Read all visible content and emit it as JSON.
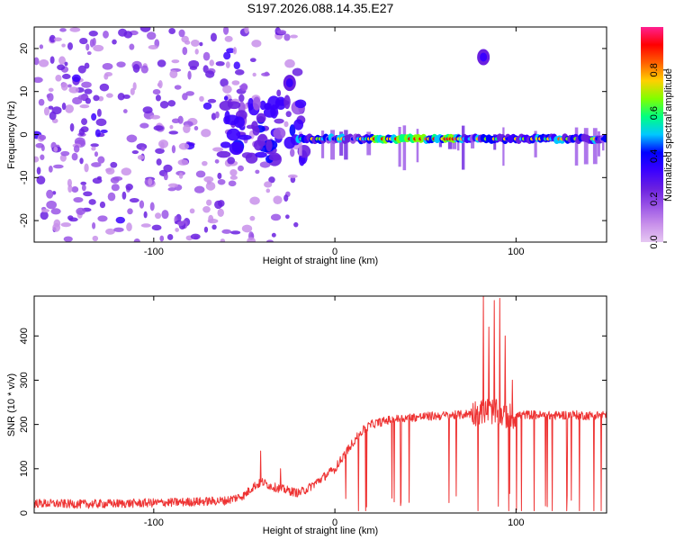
{
  "figure_title": "S197.2026.088.14.35.E27",
  "colors": {
    "line": "#ee3333",
    "axis": "#000000",
    "background": "#ffffff",
    "colormap": [
      "#e6c8f2",
      "#c890ea",
      "#9a55e6",
      "#6a20e0",
      "#3a00ff",
      "#0000ff",
      "#00c8ff",
      "#00ff80",
      "#80ff00",
      "#ffd000",
      "#ff6000",
      "#ff0000",
      "#ff2090"
    ]
  },
  "chart_data": [
    {
      "type": "heatmap",
      "title": "",
      "xlabel": "Height of straight line (km)",
      "ylabel": "Frequency (Hz)",
      "xlim": [
        -166,
        150
      ],
      "ylim": [
        -25,
        25
      ],
      "xticks": [
        "-100",
        "0",
        "100"
      ],
      "xtick_values": [
        -100,
        0,
        100
      ],
      "yticks": [
        "20",
        "10",
        "0",
        "-10",
        "-20"
      ],
      "ytick_values": [
        20,
        10,
        0,
        -10,
        -20
      ],
      "colorbar": {
        "label": "Normalized spectral amplitude",
        "range": [
          0,
          1
        ],
        "ticks": [
          "0.0",
          "0.2",
          "0.4",
          "0.6",
          "0.8"
        ],
        "tick_values": [
          0.0,
          0.2,
          0.4,
          0.6,
          0.8
        ]
      },
      "features": [
        {
          "name": "ridge",
          "x_range": [
            -20,
            150
          ],
          "frequency": -1,
          "peak_amplitude": 0.9
        },
        {
          "name": "blob",
          "x": 82,
          "frequency": 18,
          "amplitude": 0.35
        },
        {
          "name": "blob",
          "x": -25,
          "frequency": 12,
          "amplitude": 0.35
        },
        {
          "name": "scatter",
          "x_range": [
            -166,
            -20
          ],
          "frequency_range": [
            -25,
            25
          ],
          "amplitude_range": [
            0.05,
            0.3
          ]
        }
      ]
    },
    {
      "type": "line",
      "title": "",
      "xlabel": "Height of straight line (km)",
      "ylabel": "SNR (10 * v/v)",
      "xlim": [
        -166,
        150
      ],
      "ylim": [
        0,
        490
      ],
      "xticks": [
        "-100",
        "0",
        "100"
      ],
      "xtick_values": [
        -100,
        0,
        100
      ],
      "yticks": [
        "0",
        "100",
        "200",
        "300",
        "400"
      ],
      "ytick_values": [
        0,
        100,
        200,
        300,
        400
      ],
      "series": [
        {
          "name": "SNR",
          "x": [
            -166,
            -140,
            -110,
            -80,
            -60,
            -50,
            -45,
            -40,
            -35,
            -30,
            -25,
            -20,
            -15,
            -10,
            -5,
            0,
            5,
            10,
            15,
            20,
            25,
            30,
            40,
            50,
            60,
            70,
            75,
            80,
            83,
            85,
            88,
            90,
            93,
            95,
            98,
            100,
            105,
            110,
            115,
            120,
            130,
            140,
            150
          ],
          "baseline": [
            22,
            20,
            22,
            25,
            28,
            40,
            60,
            70,
            60,
            55,
            50,
            45,
            55,
            70,
            85,
            100,
            130,
            160,
            185,
            200,
            205,
            210,
            215,
            218,
            220,
            222,
            225,
            228,
            230,
            232,
            228,
            225,
            222,
            220,
            218,
            220,
            222,
            222,
            220,
            220,
            222,
            220,
            222
          ],
          "noise": 10
        }
      ],
      "peaks": [
        {
          "x": 82,
          "y": 490
        },
        {
          "x": 85,
          "y": 420
        },
        {
          "x": 88,
          "y": 480
        },
        {
          "x": 91,
          "y": 485
        },
        {
          "x": 94,
          "y": 400
        },
        {
          "x": 98,
          "y": 300
        },
        {
          "x": -41,
          "y": 140
        },
        {
          "x": -30,
          "y": 100
        }
      ],
      "dropouts": [
        {
          "x": 13,
          "y": 5
        },
        {
          "x": 17,
          "y": 5
        },
        {
          "x": 79,
          "y": 5
        },
        {
          "x": 96,
          "y": 5
        },
        {
          "x": 103,
          "y": 5
        },
        {
          "x": 110,
          "y": 5
        },
        {
          "x": 120,
          "y": 5
        },
        {
          "x": 128,
          "y": 5
        },
        {
          "x": 135,
          "y": 5
        },
        {
          "x": 143,
          "y": 5
        },
        {
          "x": 147,
          "y": 5
        }
      ]
    }
  ]
}
